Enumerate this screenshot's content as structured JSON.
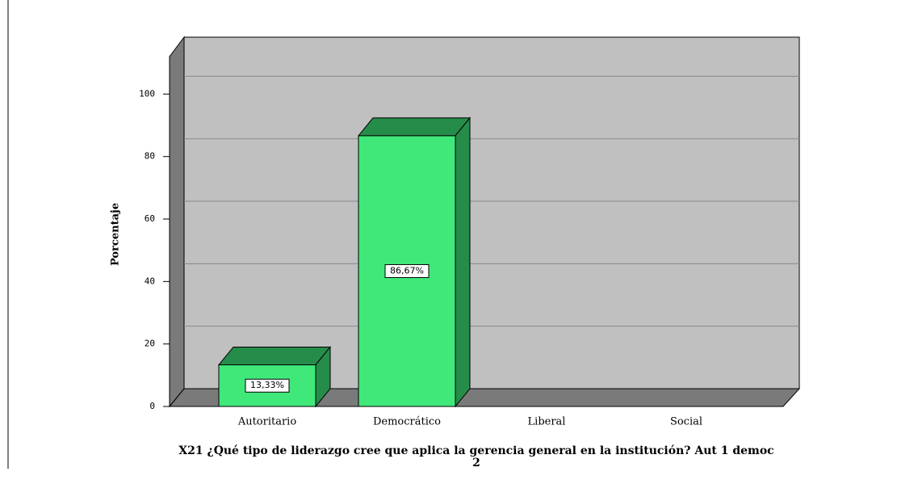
{
  "chart_data": {
    "type": "bar3d",
    "title": "X21 ¿Qué tipo de liderazgo cree que aplica la gerencia general en la institución? Aut 1 democ 2",
    "y_label": "Porcentaje",
    "categories": [
      "Autoritario",
      "Democrático",
      "Liberal",
      "Social"
    ],
    "values": [
      13.33,
      86.67,
      0,
      0
    ],
    "value_labels": [
      "13,33%",
      "86,67%",
      null,
      null
    ],
    "color": "#40e87a",
    "side_color": "#268c4a",
    "ylim": [
      0,
      112
    ],
    "yticks": [
      0,
      20,
      40,
      60,
      80,
      100
    ],
    "grid": true
  }
}
